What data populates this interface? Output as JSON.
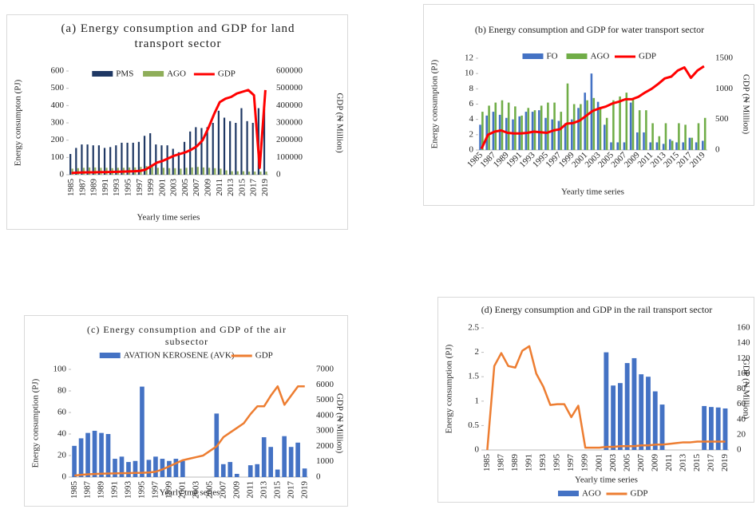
{
  "chart_data": [
    {
      "type": "bar",
      "title": "(a) Energy consumption and GDP for land transport sector",
      "ylabel": "Energy consumpton (PJ)",
      "y2label": "GDP (₦ Million)",
      "xlabel": "Yearly  time series",
      "categories": [
        1985,
        null,
        1987,
        null,
        1989,
        null,
        1991,
        null,
        1993,
        null,
        1995,
        null,
        1997,
        null,
        1999,
        null,
        2001,
        null,
        2003,
        null,
        2005,
        null,
        2007,
        null,
        2009,
        null,
        2011,
        null,
        2013,
        null,
        2015,
        null,
        2017,
        null,
        2019
      ],
      "series": [
        {
          "name": "PMS",
          "type": "bar",
          "color": "#1f3864",
          "values": [
            120,
            155,
            175,
            175,
            170,
            170,
            155,
            160,
            170,
            185,
            185,
            185,
            190,
            225,
            240,
            175,
            170,
            170,
            150,
            130,
            190,
            250,
            275,
            270,
            275,
            300,
            370,
            330,
            310,
            300,
            385,
            310,
            300,
            385,
            380
          ]
        },
        {
          "name": "AGO",
          "type": "bar",
          "color": "#8fae5a",
          "values": [
            35,
            38,
            40,
            42,
            42,
            40,
            40,
            38,
            40,
            40,
            42,
            42,
            45,
            50,
            55,
            40,
            40,
            38,
            38,
            35,
            40,
            42,
            45,
            42,
            40,
            38,
            35,
            25,
            20,
            20,
            20,
            18,
            18,
            18,
            18
          ]
        },
        {
          "name": "GDP",
          "type": "line",
          "axis": "y2",
          "color": "#ff0000",
          "values": [
            10000,
            12000,
            13000,
            14000,
            14000,
            15000,
            15000,
            16000,
            17000,
            18000,
            19000,
            20000,
            22000,
            30000,
            50000,
            70000,
            80000,
            95000,
            110000,
            120000,
            130000,
            145000,
            165000,
            200000,
            270000,
            350000,
            420000,
            440000,
            450000,
            470000,
            480000,
            490000,
            460000,
            40000,
            490000
          ]
        }
      ],
      "ylim": [
        0,
        600
      ],
      "yticks": [
        0,
        100,
        200,
        300,
        400,
        500,
        600
      ],
      "y2lim": [
        0,
        600000
      ],
      "y2ticks": [
        0,
        100000,
        200000,
        300000,
        400000,
        500000,
        600000
      ],
      "legend": "top"
    },
    {
      "type": "bar",
      "title": "(b) Energy consumption and GDP for water transport sector",
      "ylabel": "Energy consumption (PJ)",
      "y2label": "GDP (₦ Million)",
      "xlabel": "Yearly time series",
      "categories": [
        1985,
        null,
        1987,
        null,
        1989,
        null,
        1991,
        null,
        1993,
        null,
        1995,
        null,
        1997,
        null,
        1999,
        null,
        2001,
        null,
        2003,
        null,
        2005,
        null,
        2007,
        null,
        2009,
        null,
        2011,
        null,
        2013,
        null,
        2015,
        null,
        2017,
        null,
        2019
      ],
      "series": [
        {
          "name": "FO",
          "type": "bar",
          "color": "#4472c4",
          "values": [
            3.3,
            4.5,
            5,
            4.6,
            4.2,
            4,
            4.4,
            5,
            5,
            5.2,
            4.2,
            4,
            3.8,
            3.5,
            4,
            5.5,
            7.5,
            10,
            6.3,
            3.3,
            1,
            1,
            1,
            6.2,
            2.3,
            2.3,
            1,
            1,
            0.8,
            1.4,
            1,
            1,
            1.6,
            1,
            1.2
          ]
        },
        {
          "name": "AGO",
          "type": "bar",
          "color": "#70ad47",
          "values": [
            5,
            5.8,
            6.2,
            6.5,
            6.2,
            5.7,
            4.5,
            5.5,
            5.2,
            5.8,
            6.2,
            6.2,
            5,
            8.7,
            6,
            6,
            6.5,
            6.8,
            5.5,
            4.2,
            6.5,
            7,
            7.5,
            6.8,
            5.2,
            5.2,
            3.5,
            1.8,
            3.5,
            1.2,
            3.5,
            3.3,
            1.6,
            3.5,
            4.2
          ]
        },
        {
          "name": "GDP",
          "type": "line",
          "axis": "y2",
          "color": "#ff0000",
          "values": [
            20,
            250,
            300,
            320,
            280,
            270,
            270,
            280,
            300,
            290,
            280,
            320,
            340,
            430,
            440,
            480,
            560,
            640,
            680,
            710,
            760,
            790,
            830,
            830,
            870,
            940,
            1000,
            1080,
            1170,
            1200,
            1300,
            1350,
            1180,
            1300,
            1370
          ]
        }
      ],
      "ylim": [
        0,
        12
      ],
      "yticks": [
        0,
        2,
        4,
        6,
        8,
        10,
        12
      ],
      "y2lim": [
        0,
        1500
      ],
      "y2ticks": [
        0,
        500,
        1000,
        1500
      ],
      "legend": "top"
    },
    {
      "type": "bar",
      "title": "(c) Energy consumption and GDP of the air subsector",
      "ylabel": "Energy consumption (PJ)",
      "y2label": "GDP (₦ Million)",
      "xlabel": "Yearly tme series",
      "categories": [
        1985,
        null,
        1987,
        null,
        1989,
        null,
        1991,
        null,
        1993,
        null,
        1995,
        null,
        1997,
        null,
        1999,
        null,
        2001,
        null,
        2003,
        null,
        2005,
        null,
        2007,
        null,
        2009,
        null,
        2011,
        null,
        2013,
        null,
        2015,
        null,
        2017,
        null,
        2019
      ],
      "series": [
        {
          "name": "AVATION KEROSENE (AVK)",
          "type": "bar",
          "color": "#4472c4",
          "values": [
            29,
            36,
            41,
            43,
            41,
            40,
            17,
            19,
            14,
            15,
            84,
            16,
            19,
            17,
            15,
            17,
            15,
            0,
            0,
            0,
            0,
            59,
            12,
            14,
            3,
            0,
            11,
            12,
            37,
            28,
            7,
            38,
            28,
            32,
            8
          ]
        },
        {
          "name": "GDP",
          "type": "line",
          "axis": "y2",
          "color": "#ed7d31",
          "values": [
            100,
            150,
            180,
            200,
            220,
            230,
            240,
            250,
            260,
            270,
            280,
            300,
            350,
            500,
            700,
            900,
            1100,
            1200,
            1300,
            1400,
            1700,
            2000,
            2600,
            2900,
            3200,
            3500,
            4100,
            4600,
            4600,
            5300,
            5900,
            4700,
            5300,
            5900,
            5900
          ]
        }
      ],
      "ylim": [
        0,
        100
      ],
      "yticks": [
        0,
        20,
        40,
        60,
        80,
        100
      ],
      "y2lim": [
        0,
        7000
      ],
      "y2ticks": [
        0,
        1000,
        2000,
        3000,
        4000,
        5000,
        6000,
        7000
      ],
      "legend": "top"
    },
    {
      "type": "bar",
      "title": "(d) Energy consumption and GDP in the rail transport sector",
      "ylabel": "Energy consumption (PJ)",
      "y2label": "GDP (₦ Million)",
      "xlabel": "Yearly time series",
      "categories": [
        1985,
        null,
        1987,
        null,
        1989,
        null,
        1991,
        null,
        1993,
        null,
        1995,
        null,
        1997,
        null,
        1999,
        null,
        2001,
        null,
        2003,
        null,
        2005,
        null,
        2007,
        null,
        2009,
        null,
        2011,
        null,
        2013,
        null,
        2015,
        null,
        2017,
        null,
        2019
      ],
      "series": [
        {
          "name": "AGO",
          "type": "bar",
          "color": "#4472c4",
          "values": [
            0,
            0,
            0,
            0,
            0,
            0,
            0,
            0,
            0,
            0,
            0,
            0,
            0,
            0,
            0,
            0,
            0,
            2.0,
            1.32,
            1.37,
            1.78,
            1.88,
            1.55,
            1.5,
            1.2,
            0.93,
            0,
            0,
            0,
            0,
            0,
            0.9,
            0.88,
            0.87,
            0.85
          ]
        },
        {
          "name": "GDP",
          "type": "line",
          "axis": "y2",
          "color": "#ed7d31",
          "values": [
            0,
            110,
            127,
            110,
            108,
            130,
            136,
            100,
            83,
            59,
            60,
            60,
            43,
            58,
            3,
            3,
            3,
            4,
            4,
            5,
            5,
            5,
            6,
            6,
            7,
            7,
            8,
            9,
            10,
            10,
            11,
            11,
            11,
            11,
            11
          ]
        }
      ],
      "ylim": [
        0,
        2.5
      ],
      "yticks": [
        0,
        0.5,
        1,
        1.5,
        2,
        2.5
      ],
      "y2lim": [
        0,
        160
      ],
      "y2ticks": [
        0,
        20,
        40,
        60,
        80,
        100,
        120,
        140,
        160
      ],
      "legend": "bottom"
    }
  ]
}
